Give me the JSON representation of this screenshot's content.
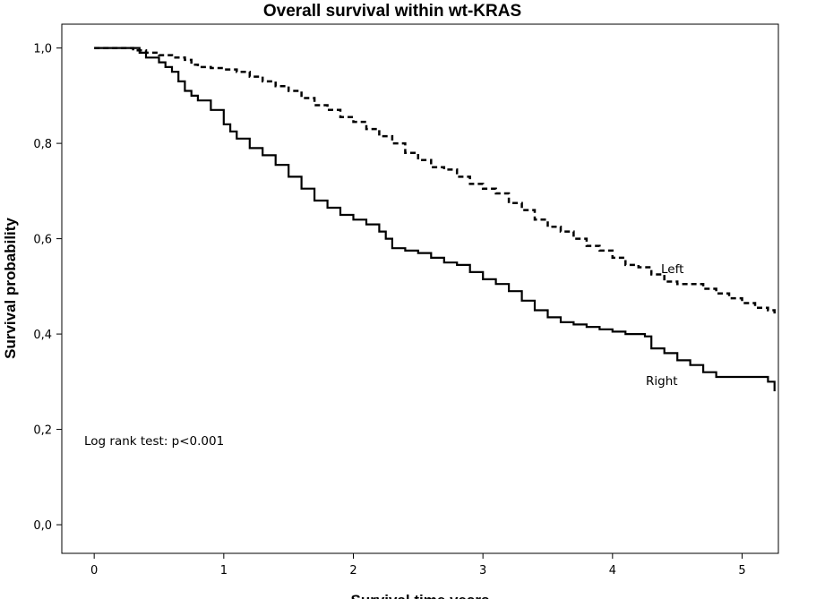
{
  "chart_data": {
    "type": "line",
    "title": "Overall survival within wt-KRAS",
    "xlabel": "Survival time years",
    "ylabel": "Survival probability",
    "xlim": [
      -0.25,
      5.28
    ],
    "ylim": [
      -0.06,
      1.05
    ],
    "xticks": [
      0,
      1,
      2,
      3,
      4,
      5
    ],
    "xtick_labels": [
      "0",
      "1",
      "2",
      "3",
      "4",
      "5"
    ],
    "yticks": [
      0.0,
      0.2,
      0.4,
      0.6,
      0.8,
      1.0
    ],
    "ytick_labels": [
      "0,0",
      "0,2",
      "0,4",
      "0,6",
      "0,8",
      "1,0"
    ],
    "grid": false,
    "annotation": "Log rank test: p<0.001",
    "series": [
      {
        "name": "Left",
        "line_style": "dashed",
        "color": "#000000",
        "x": [
          0,
          0.2,
          0.3,
          0.4,
          0.5,
          0.6,
          0.7,
          0.75,
          0.8,
          0.9,
          1.0,
          1.1,
          1.2,
          1.3,
          1.4,
          1.5,
          1.6,
          1.7,
          1.8,
          1.9,
          2.0,
          2.1,
          2.2,
          2.3,
          2.4,
          2.5,
          2.6,
          2.7,
          2.8,
          2.9,
          3.0,
          3.1,
          3.2,
          3.3,
          3.4,
          3.5,
          3.6,
          3.7,
          3.8,
          3.9,
          4.0,
          4.1,
          4.2,
          4.3,
          4.4,
          4.5,
          4.6,
          4.7,
          4.8,
          4.9,
          5.0,
          5.1,
          5.2,
          5.25
        ],
        "y": [
          1.0,
          1.0,
          0.995,
          0.99,
          0.985,
          0.98,
          0.975,
          0.965,
          0.96,
          0.958,
          0.955,
          0.95,
          0.94,
          0.93,
          0.92,
          0.91,
          0.895,
          0.88,
          0.87,
          0.855,
          0.845,
          0.83,
          0.815,
          0.8,
          0.78,
          0.765,
          0.75,
          0.745,
          0.73,
          0.715,
          0.705,
          0.695,
          0.675,
          0.66,
          0.64,
          0.625,
          0.615,
          0.6,
          0.585,
          0.575,
          0.56,
          0.545,
          0.54,
          0.525,
          0.51,
          0.505,
          0.505,
          0.495,
          0.485,
          0.475,
          0.465,
          0.455,
          0.45,
          0.44
        ]
      },
      {
        "name": "Right",
        "line_style": "solid",
        "color": "#000000",
        "x": [
          0,
          0.28,
          0.35,
          0.4,
          0.5,
          0.55,
          0.6,
          0.65,
          0.7,
          0.75,
          0.8,
          0.9,
          1.0,
          1.05,
          1.1,
          1.2,
          1.3,
          1.4,
          1.5,
          1.6,
          1.7,
          1.8,
          1.9,
          2.0,
          2.1,
          2.2,
          2.25,
          2.3,
          2.4,
          2.5,
          2.6,
          2.7,
          2.8,
          2.9,
          3.0,
          3.1,
          3.2,
          3.3,
          3.4,
          3.5,
          3.6,
          3.7,
          3.8,
          3.9,
          4.0,
          4.1,
          4.2,
          4.25,
          4.3,
          4.4,
          4.5,
          4.6,
          4.7,
          4.8,
          4.9,
          5.0,
          5.1,
          5.2,
          5.25
        ],
        "y": [
          1.0,
          1.0,
          0.99,
          0.98,
          0.97,
          0.96,
          0.95,
          0.93,
          0.91,
          0.9,
          0.89,
          0.87,
          0.84,
          0.825,
          0.81,
          0.79,
          0.775,
          0.755,
          0.73,
          0.705,
          0.68,
          0.665,
          0.65,
          0.64,
          0.63,
          0.615,
          0.6,
          0.58,
          0.575,
          0.57,
          0.56,
          0.55,
          0.545,
          0.53,
          0.515,
          0.505,
          0.49,
          0.47,
          0.45,
          0.435,
          0.425,
          0.42,
          0.415,
          0.41,
          0.405,
          0.4,
          0.4,
          0.395,
          0.37,
          0.36,
          0.345,
          0.335,
          0.32,
          0.31,
          0.31,
          0.31,
          0.31,
          0.3,
          0.28
        ]
      }
    ]
  }
}
